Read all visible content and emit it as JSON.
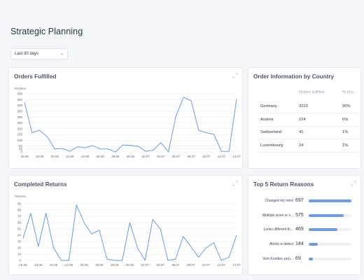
{
  "page": {
    "title": "Strategic Planning"
  },
  "filter": {
    "range_label": "Last 30 days"
  },
  "orders_fulfilled": {
    "title": "Orders Fulfilled",
    "chart_data": {
      "type": "line",
      "ylabel": "#Orders",
      "ylim": [
        0,
        500
      ],
      "yticks": [
        0,
        25,
        50,
        100,
        150,
        200,
        250,
        300,
        350,
        400,
        450,
        500
      ],
      "x_tick_labels": [
        "16.06",
        "18.06",
        "20.06",
        "22.06",
        "24.06",
        "26.06",
        "28.06",
        "30.06",
        "02.07",
        "04.07",
        "06.07",
        "08.07",
        "10.07",
        "12.07",
        "14.07"
      ],
      "x": [
        0,
        1,
        2,
        3,
        4,
        5,
        6,
        7,
        8,
        9,
        10,
        11,
        12,
        13,
        14,
        15,
        16,
        17,
        18,
        19,
        20,
        21,
        22,
        23,
        24,
        25,
        26,
        27,
        28
      ],
      "series": [
        {
          "values": [
            425,
            165,
            185,
            130,
            25,
            30,
            5,
            45,
            35,
            55,
            25,
            25,
            0,
            60,
            55,
            50,
            5,
            15,
            80,
            0,
            310,
            470,
            440,
            185,
            165,
            150,
            5,
            5,
            455
          ]
        }
      ],
      "grid": true
    }
  },
  "order_info": {
    "title": "Order Information by Country",
    "columns": [
      "Orders fulfilled",
      "% of o..."
    ],
    "rows": [
      {
        "country": "Germany",
        "orders": "3223",
        "pct": "90%"
      },
      {
        "country": "Austria",
        "orders": "224",
        "pct": "6%"
      },
      {
        "country": "Switzerland",
        "orders": "41",
        "pct": "1%"
      },
      {
        "country": "Luxembourg",
        "orders": "24",
        "pct": "1%"
      }
    ]
  },
  "completed_returns": {
    "title": "Completed Returns",
    "chart_data": {
      "type": "line",
      "ylabel": "Returns",
      "ylim": [
        0,
        90
      ],
      "yticks": [
        0,
        10,
        20,
        30,
        40,
        50,
        60,
        70,
        80,
        90
      ],
      "x_tick_labels": [
        "16.06",
        "18.06",
        "20.06",
        "22.06",
        "24.06",
        "26.06",
        "28.06",
        "30.06",
        "02.07",
        "04.07",
        "06.07",
        "08.07",
        "10.07",
        "12.07",
        "14.07"
      ],
      "x": [
        0,
        1,
        2,
        3,
        4,
        5,
        6,
        7,
        8,
        9,
        10,
        11,
        12,
        13,
        14,
        15,
        16,
        17,
        18,
        19,
        20,
        21,
        22,
        23,
        24,
        25,
        26,
        27,
        28
      ],
      "series": [
        {
          "values": [
            35,
            75,
            22,
            75,
            20,
            0,
            0,
            88,
            60,
            42,
            48,
            2,
            0,
            0,
            60,
            20,
            0,
            65,
            50,
            0,
            2,
            38,
            22,
            5,
            20,
            28,
            0,
            5,
            40
          ]
        }
      ],
      "grid": true
    }
  },
  "return_reasons": {
    "title": "Top 5 Return Reasons",
    "items": [
      {
        "label": "Changed my mind",
        "value": "697",
        "fraction": 1.0
      },
      {
        "label": "Multiple sizes or s...",
        "value": "575",
        "fraction": 0.825
      },
      {
        "label": "Looks different th...",
        "value": "469",
        "fraction": 0.673
      },
      {
        "label": "Article is defect",
        "value": "144",
        "fraction": 0.207
      },
      {
        "label": "Vom Kunden zurü...",
        "value": "69",
        "fraction": 0.099
      }
    ]
  },
  "colors": {
    "line": "#5b8fe6",
    "bar": "#6f9be6",
    "grid": "#e7e9ee"
  }
}
